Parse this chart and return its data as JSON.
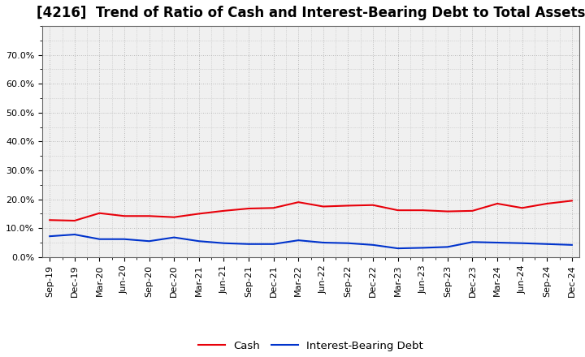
{
  "title": "[4216]  Trend of Ratio of Cash and Interest-Bearing Debt to Total Assets",
  "labels": [
    "Sep-19",
    "Dec-19",
    "Mar-20",
    "Jun-20",
    "Sep-20",
    "Dec-20",
    "Mar-21",
    "Jun-21",
    "Sep-21",
    "Dec-21",
    "Mar-22",
    "Jun-22",
    "Sep-22",
    "Dec-22",
    "Mar-23",
    "Jun-23",
    "Sep-23",
    "Dec-23",
    "Mar-24",
    "Jun-24",
    "Sep-24",
    "Dec-24"
  ],
  "cash": [
    12.8,
    12.6,
    15.2,
    14.2,
    14.2,
    13.8,
    15.0,
    16.0,
    16.8,
    17.0,
    19.0,
    17.5,
    17.8,
    18.0,
    16.2,
    16.2,
    15.8,
    16.0,
    18.5,
    17.0,
    18.5,
    19.5
  ],
  "interest_bearing_debt": [
    7.2,
    7.8,
    6.2,
    6.2,
    5.5,
    6.8,
    5.5,
    4.8,
    4.5,
    4.5,
    5.8,
    5.0,
    4.8,
    4.2,
    3.0,
    3.2,
    3.5,
    5.2,
    5.0,
    4.8,
    4.5,
    4.2
  ],
  "cash_color": "#e8000a",
  "debt_color": "#0033cc",
  "ylim_min": 0,
  "ylim_max": 80,
  "yticks": [
    0,
    10,
    20,
    30,
    40,
    50,
    60,
    70
  ],
  "ytick_labels": [
    "0.0%",
    "10.0%",
    "20.0%",
    "30.0%",
    "40.0%",
    "50.0%",
    "60.0%",
    "70.0%"
  ],
  "background_color": "#ffffff",
  "plot_bg_color": "#f0f0f0",
  "legend_cash": "Cash",
  "legend_debt": "Interest-Bearing Debt",
  "title_fontsize": 12,
  "axis_fontsize": 8,
  "legend_fontsize": 9.5
}
